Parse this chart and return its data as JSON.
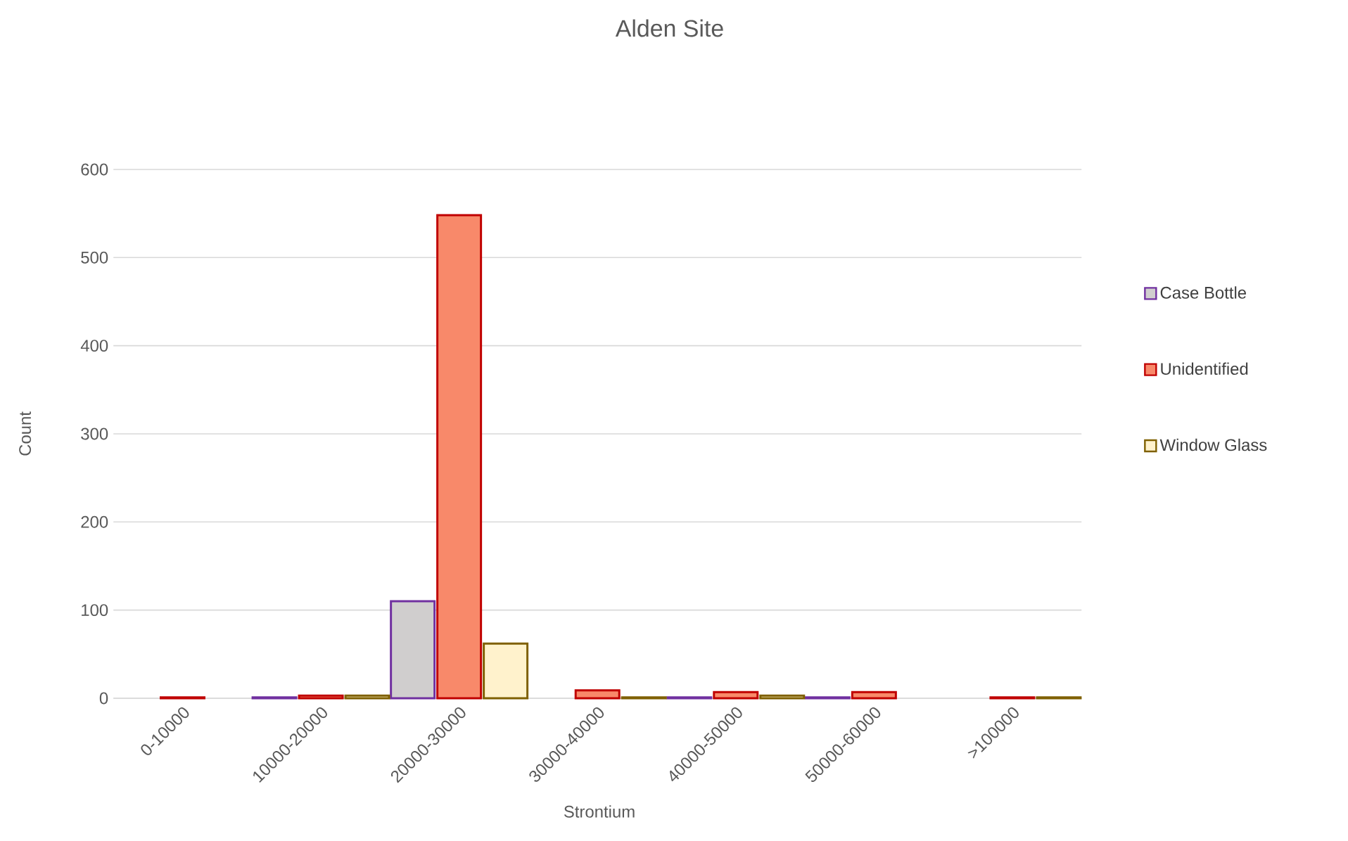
{
  "chart_data": {
    "type": "bar",
    "title": "Alden Site",
    "xlabel": "Strontium",
    "ylabel": "Count",
    "categories": [
      "0-10000",
      "10000-20000",
      "20000-30000",
      "30000-40000",
      "40000-50000",
      "50000-60000",
      ">100000"
    ],
    "series": [
      {
        "name": "Case Bottle",
        "color": "#d0cece",
        "values": [
          0,
          1,
          110,
          0,
          1,
          1,
          0
        ]
      },
      {
        "name": "Unidentified",
        "color": "#f8896a",
        "values": [
          1,
          3,
          548,
          9,
          7,
          7,
          1
        ]
      },
      {
        "name": "Window Glass",
        "color": "#fff2cc",
        "values": [
          0,
          3,
          62,
          1,
          3,
          0,
          1
        ]
      }
    ],
    "ylim": [
      0,
      600
    ],
    "yticks": [
      0,
      100,
      200,
      300,
      400,
      500,
      600
    ],
    "grid": "y",
    "legend": "right"
  }
}
